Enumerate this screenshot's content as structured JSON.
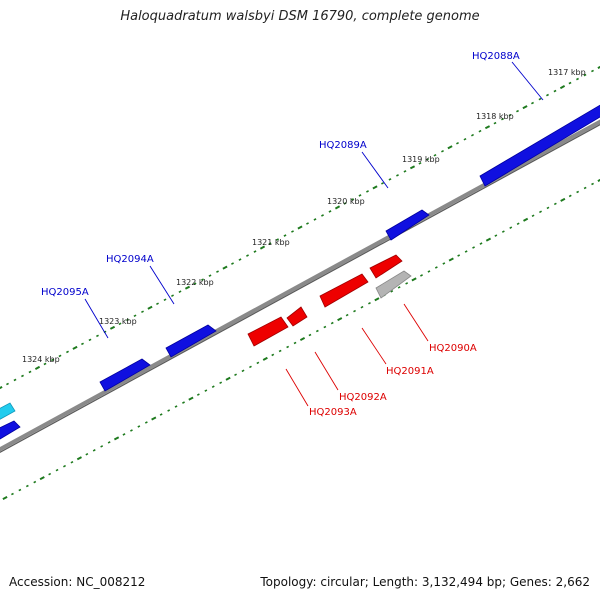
{
  "title": "Haloquadratum walsbyi DSM 16790, complete genome",
  "footer": {
    "accession": "Accession: NC_008212",
    "summary": "Topology: circular; Length: 3,132,494 bp; Genes: 2,662"
  },
  "colors": {
    "forward": "#1010e0",
    "reverse": "#ee0000",
    "other": "#b4b4b4",
    "cyan": "#22ccee",
    "tick": "#1e7a1e",
    "backbone": "#808080",
    "label_forward": "#0000cc",
    "label_reverse": "#dd0000"
  },
  "scale_labels": [
    "1317 kbp",
    "1318 kbp",
    "1319 kbp",
    "1320 kbp",
    "1321 kbp",
    "1322 kbp",
    "1323 kbp",
    "1324 kbp"
  ],
  "genes_forward": [
    "HQ2088A",
    "HQ2089A",
    "HQ2094A",
    "HQ2095A"
  ],
  "genes_reverse": [
    "HQ2090A",
    "HQ2091A",
    "HQ2092A",
    "HQ2093A"
  ]
}
